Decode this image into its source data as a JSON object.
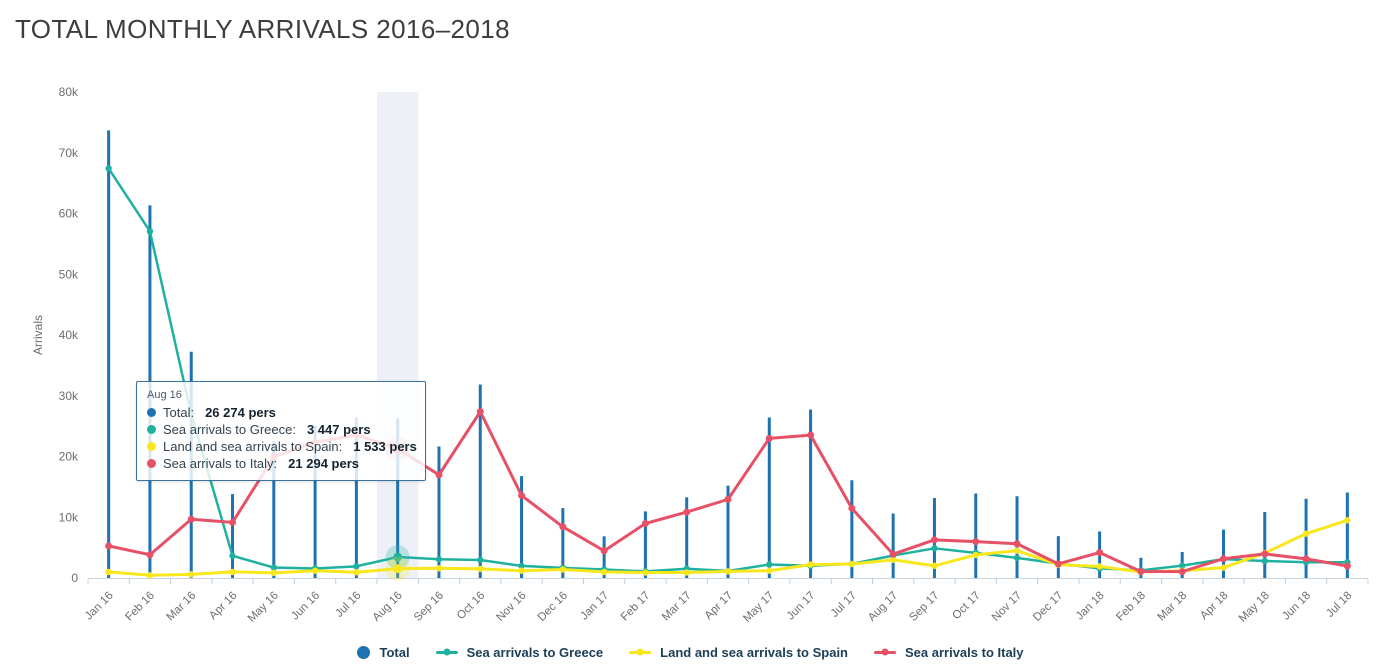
{
  "title": "TOTAL MONTHLY ARRIVALS 2016–2018",
  "y_axis": {
    "label": "Arrivals",
    "ticks": [
      "0",
      "10k",
      "20k",
      "30k",
      "40k",
      "50k",
      "60k",
      "70k",
      "80k"
    ]
  },
  "colors": {
    "total": "#1e72b2",
    "greece": "#1fb1a0",
    "spain": "#f8e71c",
    "italy": "#e65167",
    "highlight_band": "#edf1f7",
    "axis_line": "#c9d5de",
    "tick": "#c4ced6",
    "axis_text": "#6e6e6e"
  },
  "tooltip": {
    "title": "Aug 16",
    "rows": [
      {
        "label": "Total:",
        "value": "26 274 pers",
        "color": "#1e72b2"
      },
      {
        "label": "Sea arrivals to Greece:",
        "value": "3 447 pers",
        "color": "#1fb1a0"
      },
      {
        "label": "Land and sea arrivals to Spain:",
        "value": "1 533 pers",
        "color": "#f8e71c"
      },
      {
        "label": "Sea arrivals to Italy:",
        "value": "21 294 pers",
        "color": "#e65167"
      }
    ]
  },
  "legend": {
    "items": [
      {
        "label": "Total",
        "color": "#1e72b2"
      },
      {
        "label": "Sea arrivals to Greece",
        "color": "#1fb1a0"
      },
      {
        "label": "Land and sea arrivals to Spain",
        "color": "#f8e71c"
      },
      {
        "label": "Sea arrivals to Italy",
        "color": "#e65167"
      }
    ]
  },
  "chart_data": {
    "type": "line",
    "title": "TOTAL MONTHLY ARRIVALS 2016–2018",
    "xlabel": "",
    "ylabel": "Arrivals",
    "ylim": [
      0,
      80000
    ],
    "grid": false,
    "legend_position": "bottom",
    "highlight": {
      "category": "Aug 16",
      "index": 7
    },
    "categories": [
      "Jan 16",
      "Feb 16",
      "Mar 16",
      "Apr 16",
      "May 16",
      "Jun 16",
      "Jul 16",
      "Aug 16",
      "Sep 16",
      "Oct 16",
      "Nov 16",
      "Dec 16",
      "Jan 17",
      "Feb 17",
      "Mar 17",
      "Apr 17",
      "May 17",
      "Jun 17",
      "Jul 17",
      "Aug 17",
      "Sep 17",
      "Oct 17",
      "Nov 17",
      "Dec 17",
      "Jan 18",
      "Feb 18",
      "Mar 18",
      "Apr 18",
      "May 18",
      "Jun 18",
      "Jul 18"
    ],
    "series": [
      {
        "name": "Total",
        "render": "bars",
        "color": "#1e72b2",
        "values": [
          73688,
          61344,
          37247,
          13799,
          22528,
          25093,
          26422,
          26274,
          21655,
          31854,
          16772,
          11493,
          6861,
          10960,
          13281,
          15199,
          26415,
          27738,
          16095,
          10609,
          13168,
          13918,
          13449,
          6891,
          7665,
          3318,
          4288,
          7971,
          10863,
          13047,
          14069
        ]
      },
      {
        "name": "Sea arrivals to Greece",
        "render": "line",
        "color": "#1fb1a0",
        "values": [
          67415,
          57066,
          26971,
          3650,
          1721,
          1554,
          1920,
          3447,
          3080,
          2970,
          1991,
          1665,
          1393,
          1089,
          1528,
          1156,
          2222,
          2012,
          2336,
          3695,
          4886,
          4134,
          3308,
          2364,
          1583,
          1253,
          2039,
          3100,
          2800,
          2600,
          2600
        ]
      },
      {
        "name": "Land and sea arrivals to Spain",
        "render": "line",
        "color": "#f8e71c",
        "values": [
          1000,
          450,
          600,
          1000,
          850,
          1200,
          950,
          1533,
          1600,
          1500,
          1200,
          1400,
          1000,
          900,
          900,
          1100,
          1200,
          2200,
          2300,
          3000,
          2000,
          3800,
          4500,
          2200,
          1900,
          1000,
          1200,
          1700,
          4100,
          7300,
          9500
        ]
      },
      {
        "name": "Sea arrivals to Italy",
        "render": "line",
        "color": "#e65167",
        "values": [
          5273,
          3828,
          9676,
          9149,
          19957,
          22339,
          23552,
          21294,
          16975,
          27384,
          13581,
          8428,
          4468,
          8971,
          10853,
          12943,
          22993,
          23526,
          11459,
          3914,
          6282,
          5984,
          5641,
          2327,
          4182,
          1065,
          1049,
          3171,
          3963,
          3147,
          1969
        ]
      }
    ]
  }
}
